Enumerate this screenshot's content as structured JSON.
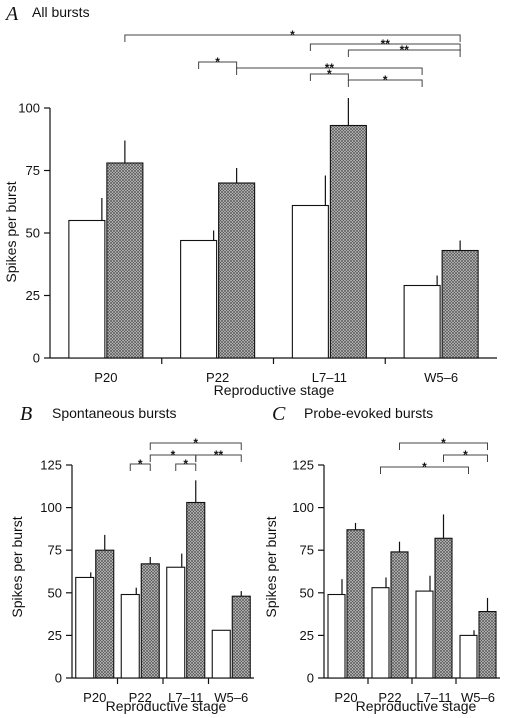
{
  "chart_data": [
    {
      "id": "A",
      "type": "bar",
      "panel_label": "A",
      "title": "All bursts",
      "xlabel": "Reproductive stage",
      "ylabel": "Spikes per burst",
      "categories": [
        "P20",
        "P22",
        "L7–11",
        "W5–6"
      ],
      "ylim": [
        0,
        100
      ],
      "yticks": [
        "0",
        "25",
        "50",
        "75",
        "100"
      ],
      "series": [
        {
          "style": "open",
          "values": [
            55,
            47,
            61,
            29
          ],
          "errors": [
            9,
            4,
            12,
            4
          ]
        },
        {
          "style": "crosshatched",
          "values": [
            78,
            70,
            93,
            43
          ],
          "errors": [
            9,
            6,
            11,
            4
          ]
        }
      ],
      "significance": [
        {
          "from": "P20 crosshatched",
          "to": "W5–6 crosshatched",
          "label": "*"
        },
        {
          "from": "L7–11 open",
          "to": "W5–6 crosshatched",
          "label": "**"
        },
        {
          "from": "L7–11 crosshatched",
          "to": "W5–6 crosshatched",
          "label": "**"
        },
        {
          "from": "P22 open",
          "to": "P22 crosshatched",
          "label": "*"
        },
        {
          "from": "P22 crosshatched",
          "to": "W5–6 open",
          "label": "**"
        },
        {
          "from": "L7–11 open",
          "to": "L7–11 crosshatched",
          "label": "*"
        },
        {
          "from": "L7–11 crosshatched",
          "to": "W5–6 open",
          "label": "*"
        }
      ]
    },
    {
      "id": "B",
      "type": "bar",
      "panel_label": "B",
      "title": "Spontaneous bursts",
      "xlabel": "Reproductive stage",
      "ylabel": "Spikes per burst",
      "categories": [
        "P20",
        "P22",
        "L7–11",
        "W5–6"
      ],
      "ylim": [
        0,
        125
      ],
      "yticks": [
        "0",
        "25",
        "50",
        "75",
        "100",
        "125"
      ],
      "series": [
        {
          "style": "open",
          "values": [
            59,
            49,
            65,
            28
          ],
          "errors": [
            3,
            4,
            8,
            0
          ]
        },
        {
          "style": "crosshatched",
          "values": [
            75,
            67,
            103,
            48
          ],
          "errors": [
            9,
            4,
            13,
            3
          ]
        }
      ],
      "significance": [
        {
          "from": "P22 crosshatched",
          "to": "W5–6 crosshatched",
          "label": "*"
        },
        {
          "from": "P22 open",
          "to": "P22 crosshatched",
          "label": "*"
        },
        {
          "from": "P22 crosshatched",
          "to": "L7–11 crosshatched",
          "label": "*"
        },
        {
          "from": "L7–11 crosshatched",
          "to": "W5–6 crosshatched",
          "label": "**"
        },
        {
          "from": "L7–11 open",
          "to": "L7–11 crosshatched",
          "label": "*"
        }
      ]
    },
    {
      "id": "C",
      "type": "bar",
      "panel_label": "C",
      "title": "Probe-evoked bursts",
      "xlabel": "Reproductive stage",
      "ylabel": "Spikes per burst",
      "categories": [
        "P20",
        "P22",
        "L7–11",
        "W5–6"
      ],
      "ylim": [
        0,
        125
      ],
      "yticks": [
        "0",
        "25",
        "50",
        "75",
        "100",
        "125"
      ],
      "series": [
        {
          "style": "open",
          "values": [
            49,
            53,
            51,
            25
          ],
          "errors": [
            9,
            6,
            9,
            3
          ]
        },
        {
          "style": "crosshatched",
          "values": [
            87,
            74,
            82,
            39
          ],
          "errors": [
            4,
            6,
            14,
            8
          ]
        }
      ],
      "significance": [
        {
          "from": "P22 crosshatched",
          "to": "W5–6 crosshatched",
          "label": "*"
        },
        {
          "from": "L7–11 crosshatched",
          "to": "W5–6 crosshatched",
          "label": "*"
        },
        {
          "from": "P22 open",
          "to": "W5–6 open",
          "label": "*"
        }
      ]
    }
  ]
}
